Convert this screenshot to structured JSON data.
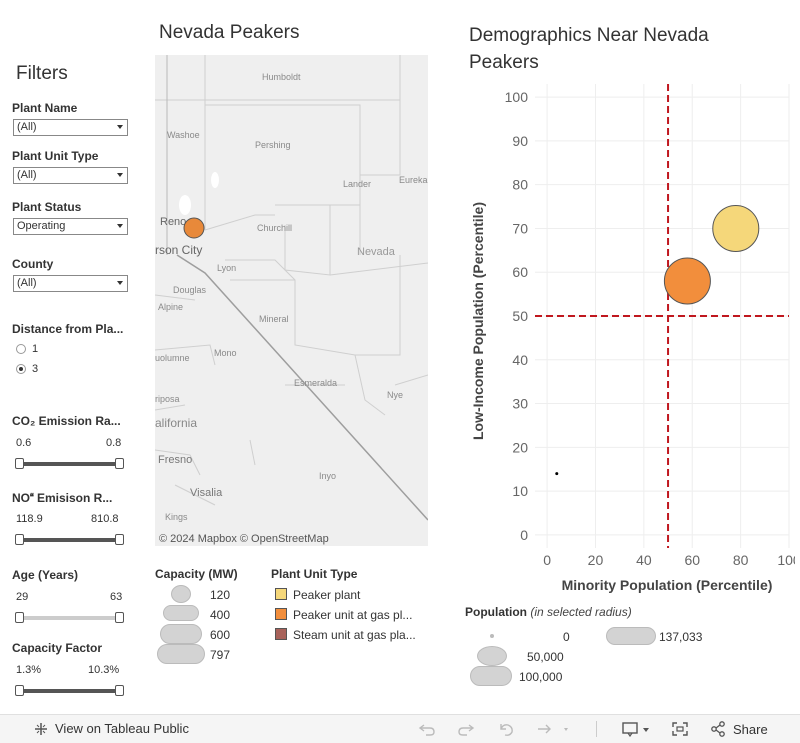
{
  "filters": {
    "title": "Filters",
    "plant_name": {
      "label": "Plant Name",
      "value": "(All)"
    },
    "plant_unit_type": {
      "label": "Plant Unit Type",
      "value": "(All)"
    },
    "plant_status": {
      "label": "Plant Status",
      "value": "Operating"
    },
    "county": {
      "label": "County",
      "value": "(All)"
    },
    "distance": {
      "label": "Distance from Pla...",
      "options": [
        "1",
        "3"
      ],
      "selected": "3"
    },
    "co2": {
      "label": "CO₂ Emission Ra...",
      "min": "0.6",
      "max": "0.8"
    },
    "nox": {
      "label": "NO Emisison R...",
      "min": "118.9",
      "max": "810.8"
    },
    "age": {
      "label": "Age (Years)",
      "min": "29",
      "max": "63"
    },
    "capacity_factor": {
      "label": "Capacity Factor",
      "min": "1.3%",
      "max": "10.3%"
    }
  },
  "map": {
    "title": "Nevada Peakers",
    "attribution": "© 2024 Mapbox  © OpenStreetMap",
    "labels": [
      "Humboldt",
      "Washoe",
      "Pershing",
      "Lander",
      "Eureka",
      "Reno",
      "Churchill",
      "rson City",
      "Nevada",
      "Lyon",
      "Douglas",
      "Alpine",
      "Mineral",
      "Mono",
      "uolumne",
      "Esmeralda",
      "riposa",
      "Nye",
      "alifornia",
      "Fresno",
      "Inyo",
      "Visalia",
      "Kings"
    ],
    "marker_color": "#e8893a"
  },
  "capacity_legend": {
    "title": "Capacity (MW)",
    "items": [
      "120",
      "400",
      "600",
      "797"
    ]
  },
  "unit_type_legend": {
    "title": "Plant Unit Type",
    "items": [
      {
        "label": "Peaker plant",
        "color": "#f5d77a"
      },
      {
        "label": "Peaker unit at gas pl...",
        "color": "#f28e3c"
      },
      {
        "label": "Steam unit at gas pla...",
        "color": "#a8625a"
      }
    ]
  },
  "population_legend": {
    "title": "Population",
    "subtitle": "(in selected radius)",
    "items": [
      "0",
      "50,000",
      "100,000",
      "137,033"
    ]
  },
  "scatter": {
    "title": "Demographics Near Nevada Peakers"
  },
  "chart_data": {
    "type": "scatter",
    "xlabel": "Minority Population (Percentile)",
    "ylabel": "Low-Income Population (Percentile)",
    "xlim": [
      -5,
      100
    ],
    "ylim": [
      -3,
      103
    ],
    "xticks": [
      0,
      20,
      40,
      60,
      80,
      100
    ],
    "yticks": [
      0,
      10,
      20,
      30,
      40,
      50,
      60,
      70,
      80,
      90,
      100
    ],
    "reference_lines": {
      "x": 50,
      "y": 50,
      "color": "#c0171e"
    },
    "points": [
      {
        "x": 78,
        "y": 70,
        "population": 137033,
        "color": "#f5d77a"
      },
      {
        "x": 58,
        "y": 58,
        "population": 137033,
        "color": "#f28e3c"
      },
      {
        "x": 4,
        "y": 14,
        "population": 0,
        "color": "#000000"
      }
    ],
    "grid": true
  },
  "toolbar": {
    "view_label": "View on Tableau Public",
    "share_label": "Share"
  }
}
